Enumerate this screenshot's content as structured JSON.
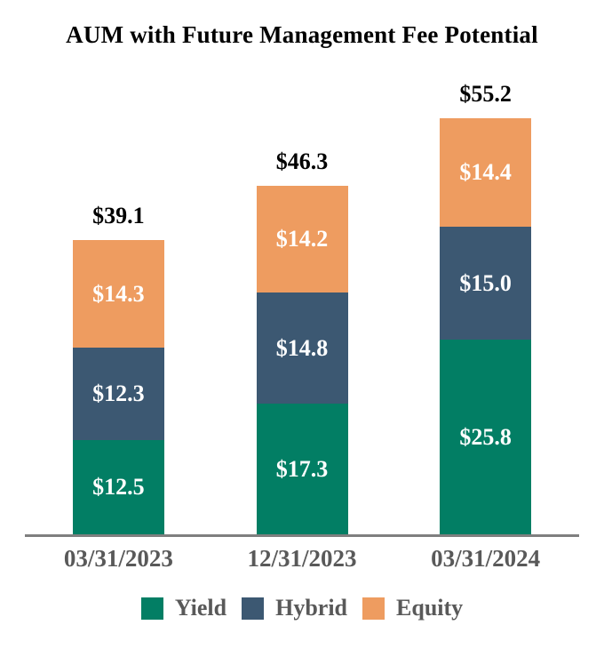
{
  "chart_data": {
    "type": "bar",
    "stacked": true,
    "title": "AUM with Future Management Fee Potential",
    "categories": [
      "03/31/2023",
      "12/31/2023",
      "03/31/2024"
    ],
    "series": [
      {
        "name": "Yield",
        "color": "#027E64",
        "values": [
          12.5,
          17.3,
          25.8
        ],
        "labels": [
          "$12.5",
          "$17.3",
          "$25.8"
        ]
      },
      {
        "name": "Hybrid",
        "color": "#3C5872",
        "values": [
          12.3,
          14.8,
          15.0
        ],
        "labels": [
          "$12.3",
          "$14.8",
          "$15.0"
        ]
      },
      {
        "name": "Equity",
        "color": "#EE9C60",
        "values": [
          14.3,
          14.2,
          14.4
        ],
        "labels": [
          "$14.3",
          "$14.2",
          "$14.4"
        ]
      }
    ],
    "totals": [
      39.1,
      46.3,
      55.2
    ],
    "total_labels": [
      "$39.1",
      "$46.3",
      "$55.2"
    ],
    "value_prefix": "$",
    "legend_position": "bottom",
    "legend_items": [
      "Yield",
      "Hybrid",
      "Equity"
    ],
    "grid": false,
    "y_axis_visible": false,
    "ylim": [
      0,
      58
    ],
    "colors": {
      "title": "#000000",
      "total_label": "#000000",
      "segment_label": "#FFFFFF",
      "axis_line": "#7F7F7F",
      "tick_label": "#595959",
      "background": "#FFFFFF"
    }
  }
}
